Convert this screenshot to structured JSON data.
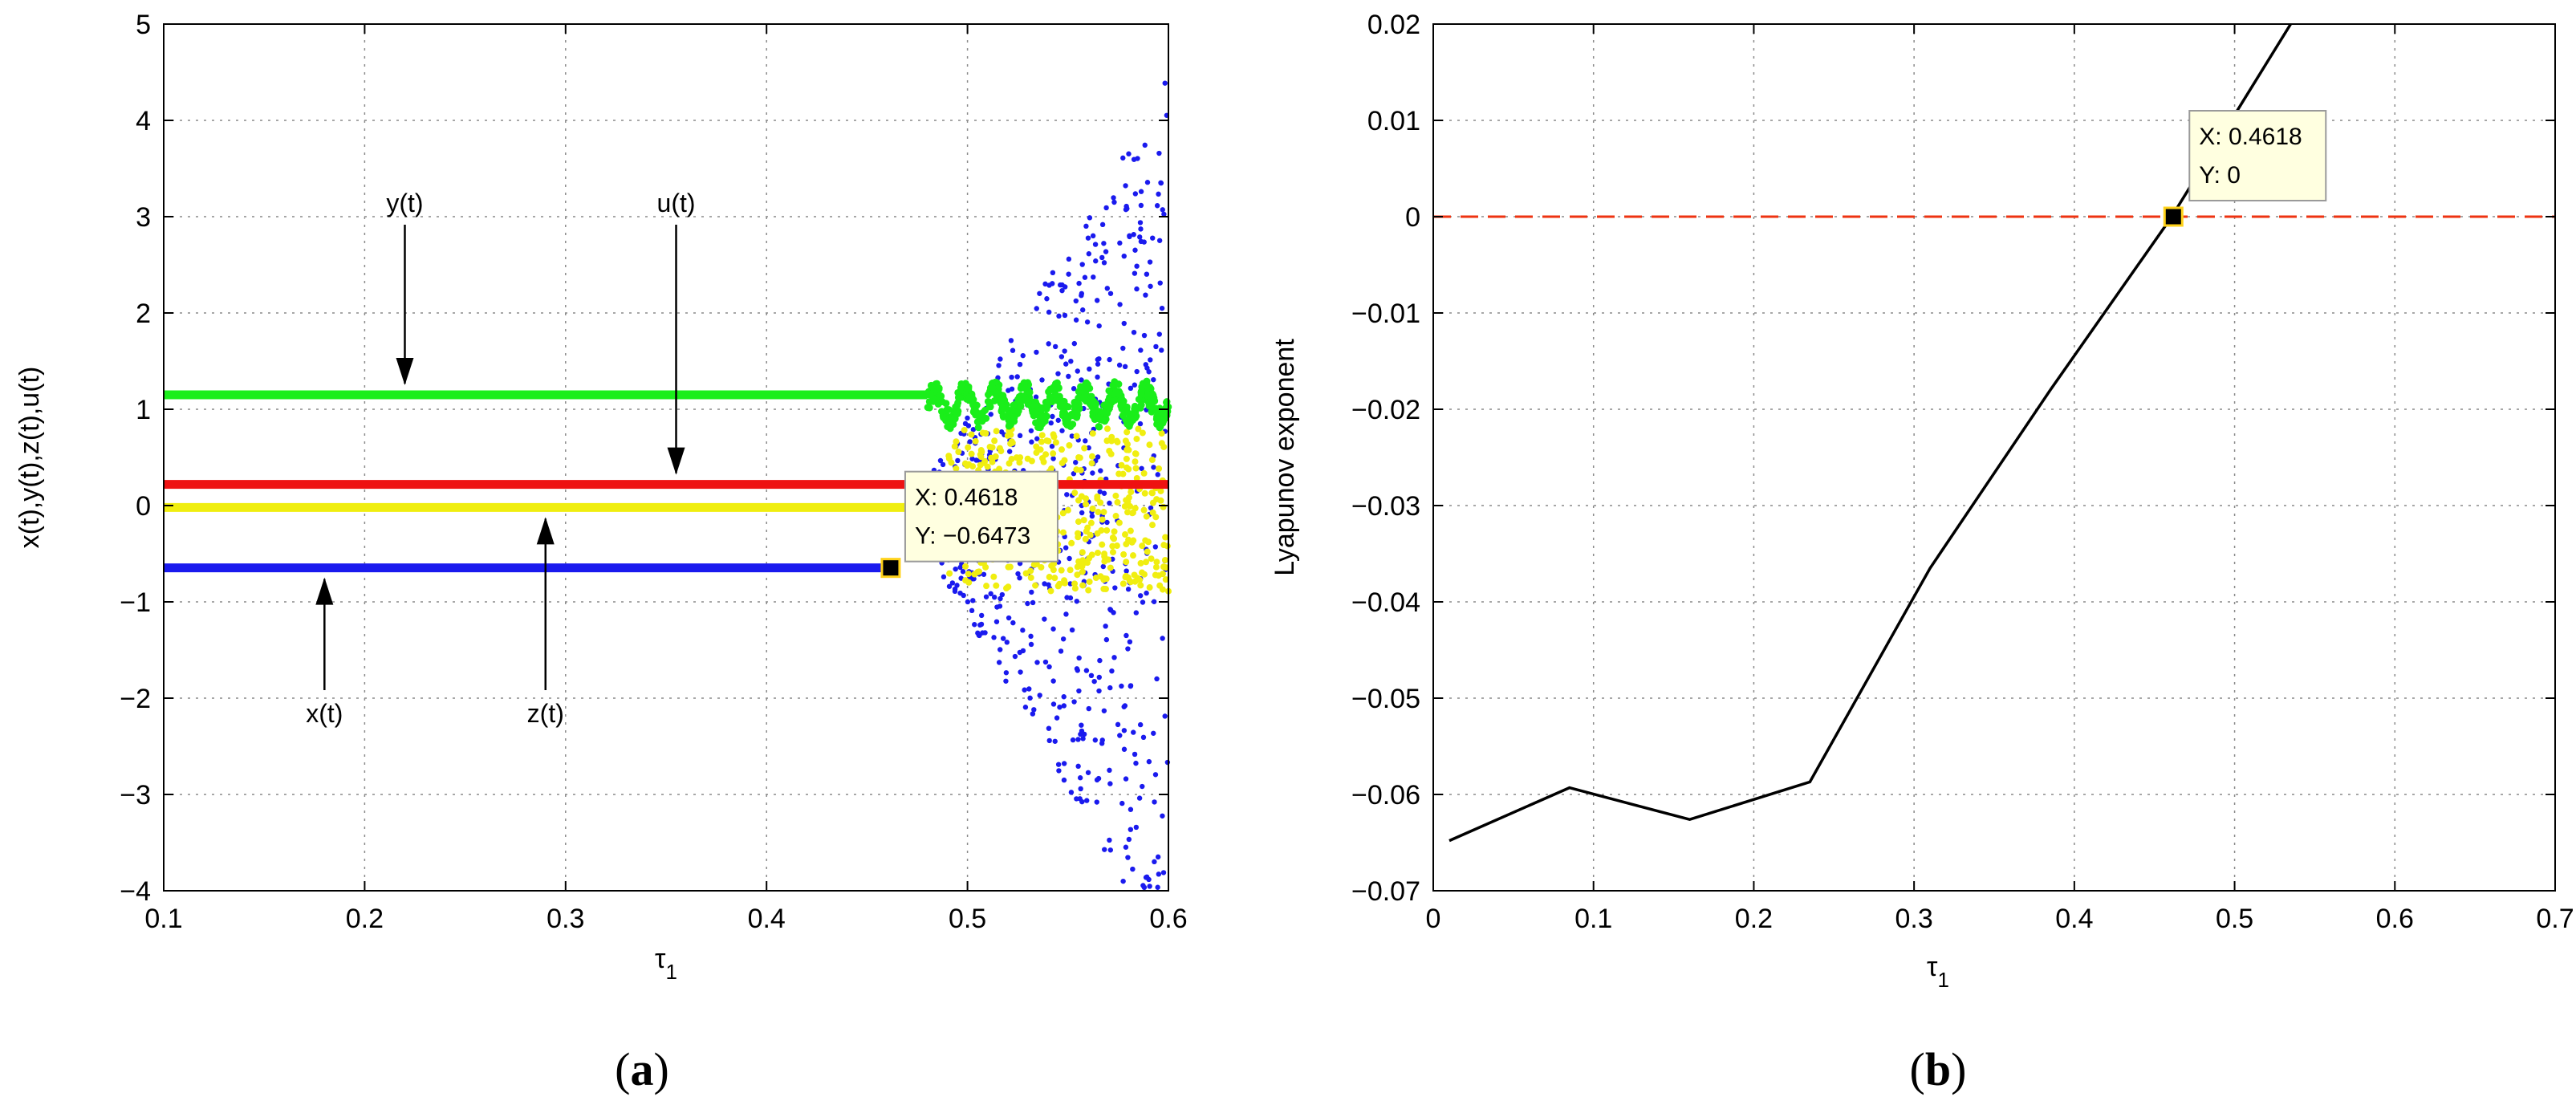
{
  "chart_data": [
    {
      "id": "a",
      "type": "scatter",
      "panel_label": "a",
      "xlabel": "τ",
      "xlabel_sub": "1",
      "ylabel": "x(t),y(t),z(t),u(t)",
      "xlim": [
        0.1,
        0.6
      ],
      "ylim": [
        -4,
        5
      ],
      "xticks": [
        0.1,
        0.2,
        0.3,
        0.4,
        0.5,
        0.6
      ],
      "xtick_labels": [
        "0.1",
        "0.2",
        "0.3",
        "0.4",
        "0.5",
        "0.6"
      ],
      "yticks": [
        -4,
        -3,
        -2,
        -1,
        0,
        1,
        2,
        3,
        4,
        5
      ],
      "ytick_labels": [
        "−4",
        "−3",
        "−2",
        "−1",
        "0",
        "1",
        "2",
        "3",
        "4",
        "5"
      ],
      "grid": true,
      "series": [
        {
          "name": "y(t)",
          "color": "#1aee1a",
          "steady_value": 1.15,
          "steady_until": 0.48,
          "after": "oscillating 0.85–1.25"
        },
        {
          "name": "u(t)",
          "color": "#ee1111",
          "steady_value": 0.22,
          "steady_until": 0.6,
          "after": "constant"
        },
        {
          "name": "z(t)",
          "color": "#f0ee10",
          "steady_value": -0.02,
          "steady_until": 0.5,
          "after": "scattered −0.9–0.9"
        },
        {
          "name": "x(t)",
          "color": "#1a1aee",
          "steady_value": -0.6473,
          "steady_until": 0.4618,
          "after": "scattered −4–4.8"
        }
      ],
      "annotations": [
        {
          "text": "y(t)",
          "x": 0.22,
          "y": 3.05,
          "arrow_to": [
            0.22,
            1.15
          ]
        },
        {
          "text": "u(t)",
          "x": 0.355,
          "y": 3.05,
          "arrow_to": [
            0.355,
            0.22
          ]
        },
        {
          "text": "x(t)",
          "x": 0.18,
          "y": -2.25,
          "arrow_to": [
            0.18,
            -0.6473
          ]
        },
        {
          "text": "z(t)",
          "x": 0.29,
          "y": -2.25,
          "arrow_to": [
            0.29,
            -0.02
          ]
        }
      ],
      "datatip": {
        "x": 0.4618,
        "y": -0.6473,
        "line1": "X: 0.4618",
        "line2": "Y: −0.6473"
      }
    },
    {
      "id": "b",
      "type": "line",
      "panel_label": "b",
      "xlabel": "τ",
      "xlabel_sub": "1",
      "ylabel": "Lyapunov exponent",
      "xlim": [
        0,
        0.7
      ],
      "ylim": [
        -0.07,
        0.02
      ],
      "xticks": [
        0,
        0.1,
        0.2,
        0.3,
        0.4,
        0.5,
        0.6,
        0.7
      ],
      "xtick_labels": [
        "0",
        "0.1",
        "0.2",
        "0.3",
        "0.4",
        "0.5",
        "0.6",
        "0.7"
      ],
      "yticks": [
        -0.07,
        -0.06,
        -0.05,
        -0.04,
        -0.03,
        -0.02,
        -0.01,
        0,
        0.01,
        0.02
      ],
      "ytick_labels": [
        "−0.07",
        "−0.06",
        "−0.05",
        "−0.04",
        "−0.03",
        "−0.02",
        "−0.01",
        "0",
        "0.01",
        "0.02"
      ],
      "grid": true,
      "series": [
        {
          "name": "Lyapunov exponent",
          "color": "#000000",
          "x": [
            0.01,
            0.085,
            0.16,
            0.235,
            0.31,
            0.385,
            0.46,
            0.535
          ],
          "y": [
            -0.0648,
            -0.0593,
            -0.0626,
            -0.0587,
            -0.0365,
            -0.018,
            -0.0002,
            0.02
          ]
        }
      ],
      "reference_line": {
        "y": 0,
        "color": "#ee3311",
        "style": "dashed"
      },
      "datatip": {
        "x": 0.4618,
        "y": 0,
        "line1": "X: 0.4618",
        "line2": "Y: 0"
      }
    }
  ]
}
